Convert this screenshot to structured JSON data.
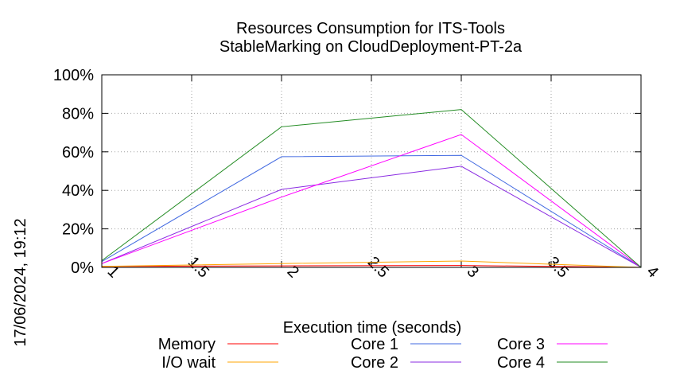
{
  "chart_data": {
    "type": "line",
    "title": "Resources Consumption for ITS-Tools",
    "subtitle": "StableMarking on CloudDeployment-PT-2a",
    "xlabel": "Execution time (seconds)",
    "ylabel": "",
    "side_label": "17/06/2024, 19:12",
    "xlim": [
      1,
      4
    ],
    "ylim": [
      0,
      100
    ],
    "x_ticks": [
      "1",
      "1.5",
      "2",
      "2.5",
      "3",
      "3.5",
      "4"
    ],
    "x_tick_values": [
      1,
      1.5,
      2,
      2.5,
      3,
      3.5,
      4
    ],
    "y_ticks": [
      "0%",
      "20%",
      "40%",
      "60%",
      "80%",
      "100%"
    ],
    "y_tick_values": [
      0,
      20,
      40,
      60,
      80,
      100
    ],
    "grid": true,
    "legend_position": "bottom",
    "x": [
      1,
      2,
      3,
      4
    ],
    "series": [
      {
        "name": "Memory",
        "color": "#ff0000",
        "values": [
          0.5,
          0.8,
          1.0,
          0
        ]
      },
      {
        "name": "I/O wait",
        "color": "#ffa500",
        "values": [
          0.5,
          2.0,
          3.3,
          0
        ]
      },
      {
        "name": "Core 1",
        "color": "#4169e1",
        "values": [
          3,
          57.5,
          58.2,
          0
        ]
      },
      {
        "name": "Core 2",
        "color": "#8a2be2",
        "values": [
          2,
          40.5,
          52.5,
          0
        ]
      },
      {
        "name": "Core 3",
        "color": "#ff00ff",
        "values": [
          2,
          36.5,
          69,
          0
        ]
      },
      {
        "name": "Core 4",
        "color": "#228b22",
        "values": [
          3.5,
          73,
          82,
          0
        ]
      }
    ]
  }
}
